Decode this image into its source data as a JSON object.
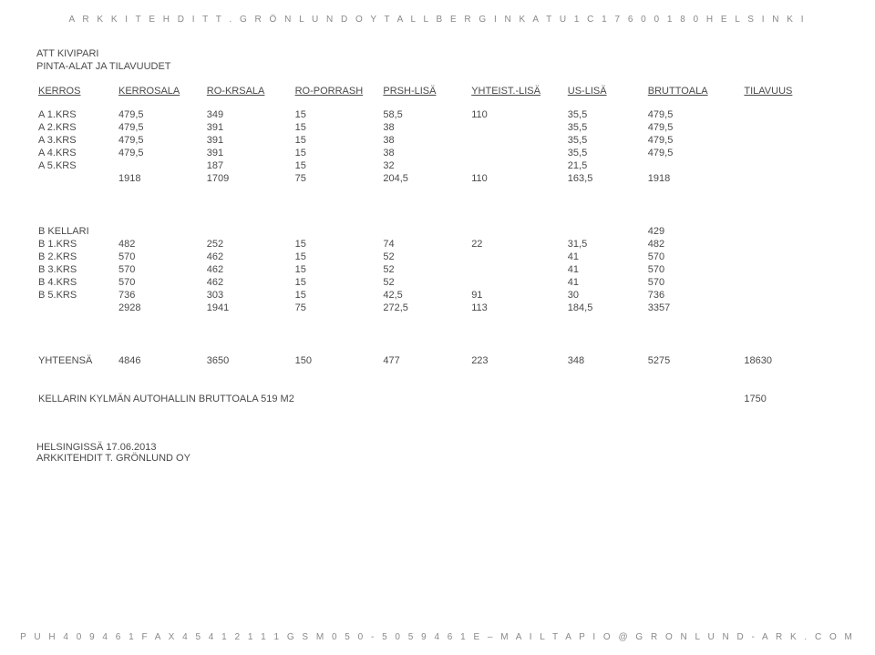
{
  "header_arch": "A R K K I T E H D I T   T .   G R Ö N L U N D   O Y   T A L L B E R G I N K A T U   1 C   1 7 6   0 0 1 8 0   H E L S I N K I",
  "att": "ATT KIVIPARI",
  "pinta": "PINTA-ALAT JA TILAVUUDET",
  "columns": {
    "c0": "KERROS",
    "c1": "KERROSALA",
    "c2": "RO-KRSALA",
    "c3": "RO-PORRASH",
    "c4": "PRSH-LISÄ",
    "c5": "YHTEIST.-LISÄ",
    "c6": "US-LISÄ",
    "c7": "BRUTTOALA",
    "c8": "TILAVUUS"
  },
  "blockA": {
    "rows": [
      [
        "A 1.KRS",
        "479,5",
        "349",
        "15",
        "58,5",
        "110",
        "35,5",
        "479,5",
        ""
      ],
      [
        "A 2.KRS",
        "479,5",
        "391",
        "15",
        "38",
        "",
        "35,5",
        "479,5",
        ""
      ],
      [
        "A 3.KRS",
        "479,5",
        "391",
        "15",
        "38",
        "",
        "35,5",
        "479,5",
        ""
      ],
      [
        "A 4.KRS",
        "479,5",
        "391",
        "15",
        "38",
        "",
        "35,5",
        "479,5",
        ""
      ],
      [
        "A 5.KRS",
        "",
        "187",
        "15",
        "32",
        "",
        "21,5",
        "",
        ""
      ],
      [
        "",
        "1918",
        "1709",
        "75",
        "204,5",
        "110",
        "163,5",
        "1918",
        ""
      ]
    ]
  },
  "blockB": {
    "kellari_label": "B KELLARI",
    "kellari_value": "429",
    "rows": [
      [
        "B 1.KRS",
        "482",
        "252",
        "15",
        "74",
        "22",
        "31,5",
        "482",
        ""
      ],
      [
        "B 2.KRS",
        "570",
        "462",
        "15",
        "52",
        "",
        "41",
        "570",
        ""
      ],
      [
        "B 3.KRS",
        "570",
        "462",
        "15",
        "52",
        "",
        "41",
        "570",
        ""
      ],
      [
        "B 4.KRS",
        "570",
        "462",
        "15",
        "52",
        "",
        "41",
        "570",
        ""
      ],
      [
        "B 5.KRS",
        "736",
        "303",
        "15",
        "42,5",
        "91",
        "30",
        "736",
        ""
      ],
      [
        "",
        "2928",
        "1941",
        "75",
        "272,5",
        "113",
        "184,5",
        "3357",
        ""
      ]
    ]
  },
  "totals": {
    "label": "YHTEENSÄ",
    "values": [
      "4846",
      "3650",
      "150",
      "477",
      "223",
      "348",
      "5275",
      "18630"
    ]
  },
  "cellar_note_label": "KELLARIN KYLMÄN AUTOHALLIN BRUTTOALA 519 M2",
  "cellar_note_value": "1750",
  "helsinki": "HELSINGISSÄ 17.06.2013",
  "ark_line": "ARKKITEHDIT T. GRÖNLUND OY",
  "footer_bar": "P U H   4 0 9 4 6 1   F A X   4 5 4 1 2 1 1 1   G S M   0 5 0 - 5 0 5 9 4 6 1   E – M A I L   T A P I O @ G R O N L U N D - A R K . C O M"
}
